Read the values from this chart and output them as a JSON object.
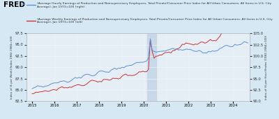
{
  "background_color": "#d5e8f4",
  "plot_bg_color": "#e6eef5",
  "shade_color": "#c8d8e8",
  "legend_blue": "(Average Hourly Earnings of Production and Nonsupervisory Employees, Total Private/Consumer Price Index for All Urban Consumers: All Items in U.S. City Average), Jan 1973=100 (right)",
  "legend_red": "(Average Weekly Earnings of Production and Nonsupervisory Employees, Total Private/Consumer Price Index for All Urban Consumers: All Items in U.S. City Average), Jan 1973=100 (left)",
  "ylabel_left": "Index of ($ per Week)/Index 1982-1984=100",
  "ylabel_right": "Index of ($ per Hour)/Index (1982-1984=100)",
  "ylim_left": [
    82.5,
    97.5
  ],
  "ylim_right": [
    90.0,
    105.0
  ],
  "yticks_left": [
    82.5,
    85.0,
    87.5,
    90.0,
    92.5,
    95.0,
    97.5
  ],
  "yticks_right": [
    90.0,
    92.5,
    95.0,
    97.5,
    100.0,
    102.5,
    105.0
  ],
  "blue_color": "#5b8fd4",
  "red_color": "#c83232",
  "line_width": 0.7,
  "grid_color": "#f0f4f8",
  "spine_color": "#b0b8c0"
}
